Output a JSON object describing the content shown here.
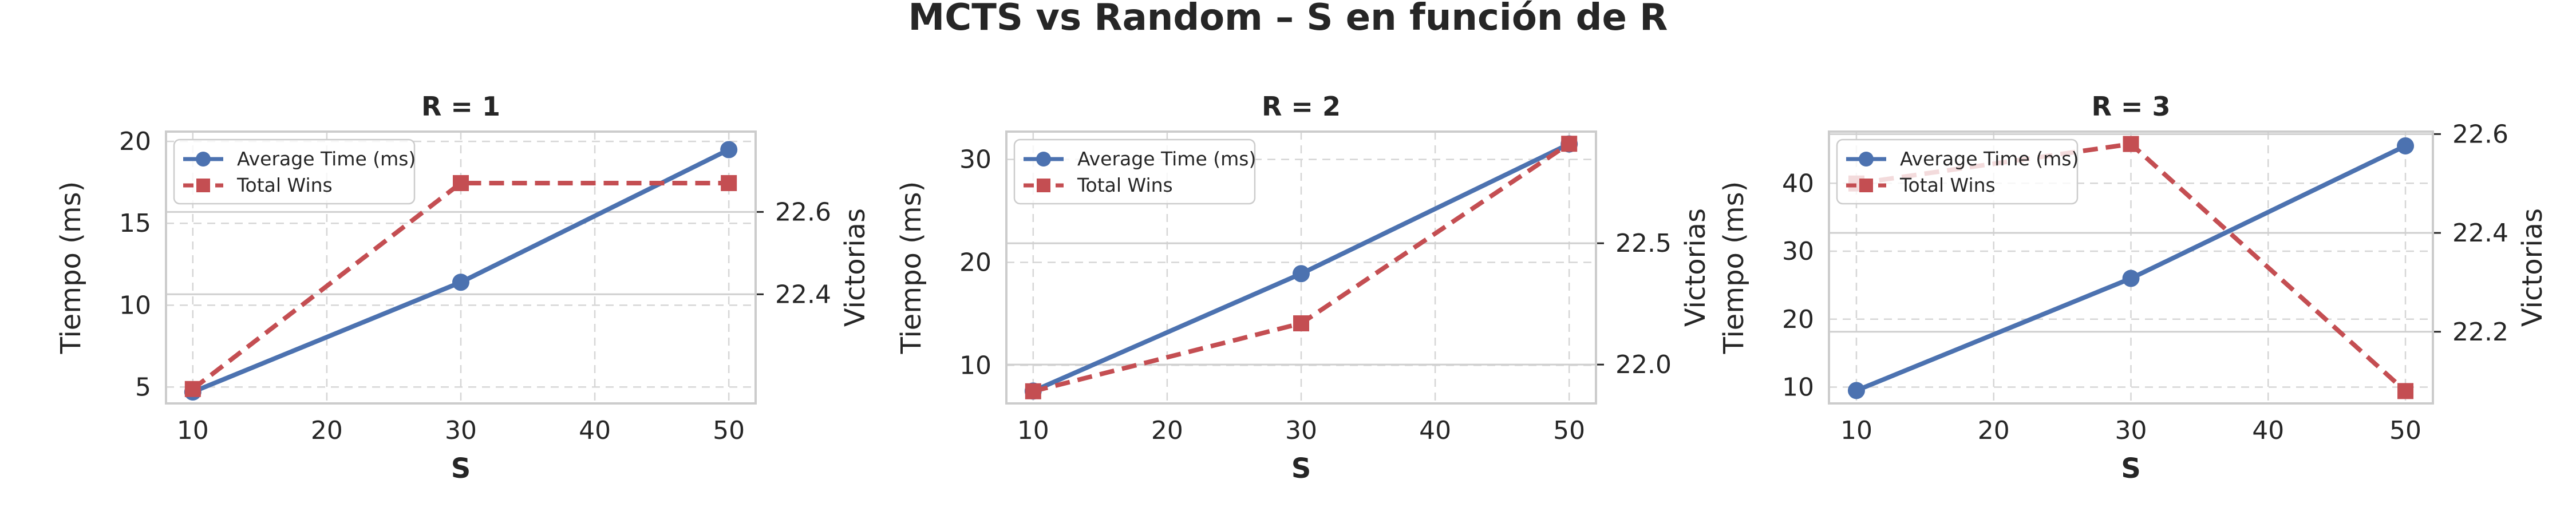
{
  "suptitle": "MCTS vs Random – S en función de R",
  "colors": {
    "time": "#4c72b0",
    "wins": "#c44e52",
    "grid": "#d6d6d6",
    "spine": "#cccccc",
    "text": "#262626"
  },
  "chart_data": [
    {
      "type": "line",
      "title": "R = 1",
      "xlabel": "S",
      "ylabel": "Tiempo (ms)",
      "y2label": "Victorias",
      "x": [
        10,
        30,
        50
      ],
      "xlim": [
        8,
        52
      ],
      "xticks": [
        "10",
        "20",
        "30",
        "40",
        "50"
      ],
      "ylim": [
        4.0,
        20.6
      ],
      "yticks": [
        "5",
        "10",
        "15",
        "20"
      ],
      "y2lim": [
        22.135,
        22.795
      ],
      "y2ticks": [
        "22.4",
        "22.6"
      ],
      "grid": true,
      "legend_position": "upper-left",
      "series": [
        {
          "name": "Average Time (ms)",
          "axis": "left",
          "style": "solid-circle",
          "values": [
            4.7,
            11.4,
            19.5
          ]
        },
        {
          "name": "Total Wins",
          "axis": "right",
          "style": "dashed-square",
          "values": [
            22.17,
            22.67,
            22.67
          ]
        }
      ]
    },
    {
      "type": "line",
      "title": "R = 2",
      "xlabel": "S",
      "ylabel": "Tiempo (ms)",
      "y2label": "Victorias",
      "x": [
        10,
        30,
        50
      ],
      "xlim": [
        8,
        52
      ],
      "xticks": [
        "10",
        "20",
        "30",
        "40",
        "50"
      ],
      "ylim": [
        6.3,
        32.7
      ],
      "yticks": [
        "10",
        "20",
        "30"
      ],
      "y2lim": [
        21.84,
        22.96
      ],
      "y2ticks": [
        "22.0",
        "22.5"
      ],
      "grid": true,
      "legend_position": "upper-left",
      "series": [
        {
          "name": "Average Time (ms)",
          "axis": "left",
          "style": "solid-circle",
          "values": [
            7.5,
            18.9,
            31.5
          ]
        },
        {
          "name": "Total Wins",
          "axis": "right",
          "style": "dashed-square",
          "values": [
            21.89,
            22.17,
            22.91
          ]
        }
      ]
    },
    {
      "type": "line",
      "title": "R = 3",
      "xlabel": "S",
      "ylabel": "Tiempo (ms)",
      "y2label": "Victorias",
      "x": [
        10,
        30,
        50
      ],
      "xlim": [
        8,
        52
      ],
      "xticks": [
        "10",
        "20",
        "30",
        "40",
        "50"
      ],
      "ylim": [
        7.6,
        47.6
      ],
      "yticks": [
        "10",
        "20",
        "30",
        "40"
      ],
      "y2lim": [
        22.055,
        22.605
      ],
      "y2ticks": [
        "22.2",
        "22.4",
        "22.6"
      ],
      "grid": true,
      "legend_position": "upper-left",
      "series": [
        {
          "name": "Average Time (ms)",
          "axis": "left",
          "style": "solid-circle",
          "values": [
            9.5,
            26.0,
            45.5
          ]
        },
        {
          "name": "Total Wins",
          "axis": "right",
          "style": "dashed-square",
          "values": [
            22.5,
            22.58,
            22.08
          ]
        }
      ]
    }
  ]
}
